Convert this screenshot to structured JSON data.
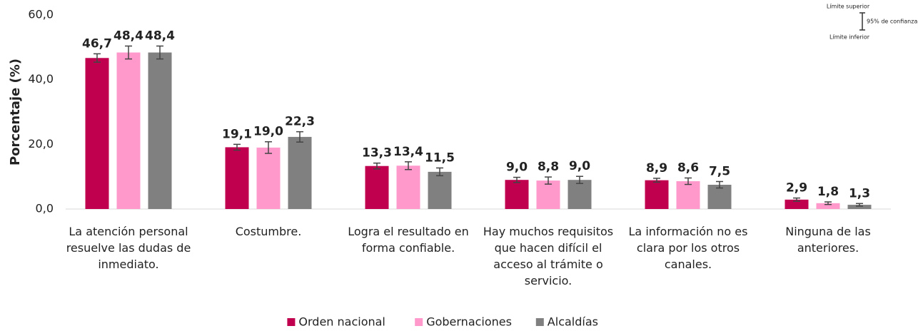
{
  "chart_data": {
    "type": "bar",
    "y_label": "Porcentaje (%)",
    "categories": [
      "La atención personal resuelve las dudas de inmediato.",
      "Costumbre.",
      "Logra el resultado en forma confiable.",
      "Hay muchos requisitos que hacen difícil el acceso al trámite o servicio.",
      "La información no es clara por los otros canales.",
      "Ninguna de las anteriores."
    ],
    "series": [
      {
        "name": "Orden nacional",
        "color": "#c0004f",
        "values": [
          46.7,
          19.1,
          13.3,
          9.0,
          8.9,
          2.9
        ],
        "value_labels": [
          "46,7",
          "19,1",
          "13,3",
          "9,0",
          "8,9",
          "2,9"
        ],
        "errors": [
          1.3,
          0.9,
          0.9,
          0.8,
          0.6,
          0.5
        ]
      },
      {
        "name": "Gobernaciones",
        "color": "#ff99cc",
        "values": [
          48.4,
          19.0,
          13.4,
          8.8,
          8.6,
          1.8
        ],
        "value_labels": [
          "48,4",
          "19,0",
          "13,4",
          "8,8",
          "8,6",
          "1,8"
        ],
        "errors": [
          2.0,
          1.8,
          1.2,
          1.1,
          1.0,
          0.4
        ]
      },
      {
        "name": "Alcaldías",
        "color": "#808080",
        "values": [
          48.4,
          22.3,
          11.5,
          9.0,
          7.5,
          1.3
        ],
        "value_labels": [
          "48,4",
          "22,3",
          "11,5",
          "9,0",
          "7,5",
          "1,3"
        ],
        "errors": [
          2.0,
          1.6,
          1.2,
          1.1,
          1.0,
          0.4
        ]
      }
    ],
    "ylim": [
      0,
      60
    ],
    "yticks": [
      {
        "value": 0,
        "label": "0,0"
      },
      {
        "value": 20,
        "label": "20,0"
      },
      {
        "value": 40,
        "label": "40,0"
      },
      {
        "value": 60,
        "label": "60,0"
      }
    ],
    "grid": false,
    "annotation": {
      "upper": "Límite superior",
      "middle": "95% de confianza",
      "lower": "Límite inferior"
    },
    "legend": "bottom"
  }
}
